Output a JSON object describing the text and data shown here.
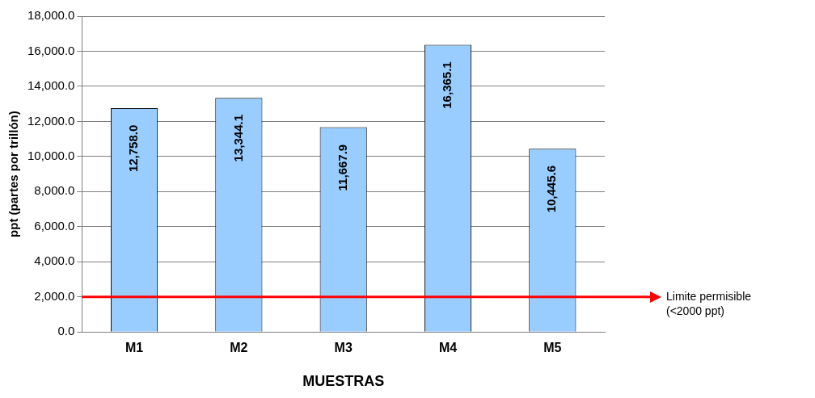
{
  "chart_data": {
    "type": "bar",
    "xlabel": "MUESTRAS",
    "ylabel": "ppt (partes por trillón)",
    "categories": [
      "M1",
      "M2",
      "M3",
      "M4",
      "M5"
    ],
    "values": [
      12758.0,
      13344.1,
      11667.9,
      16365.1,
      10445.6
    ],
    "value_labels": [
      "12,758.0",
      "13,344.1",
      "11,667.9",
      "16,365.1",
      "10,445.6"
    ],
    "color": "#99ccff",
    "ylim": [
      0,
      18000
    ],
    "yticks": [
      {
        "value": 0,
        "label": "0.0"
      },
      {
        "value": 2000,
        "label": "2,000.0"
      },
      {
        "value": 4000,
        "label": "4,000.0"
      },
      {
        "value": 6000,
        "label": "6,000.0"
      },
      {
        "value": 8000,
        "label": "8,000.0"
      },
      {
        "value": 10000,
        "label": "10,000.0"
      },
      {
        "value": 12000,
        "label": "12,000.0"
      },
      {
        "value": 14000,
        "label": "14,000.0"
      },
      {
        "value": 16000,
        "label": "16,000.0"
      },
      {
        "value": 18000,
        "label": "18,000.0"
      }
    ],
    "grid": "y",
    "ref_lines": [
      {
        "axis": "y",
        "value": 2000,
        "label": "Limite permisible (<2000 ppt)",
        "color": "#ff0000"
      }
    ]
  }
}
